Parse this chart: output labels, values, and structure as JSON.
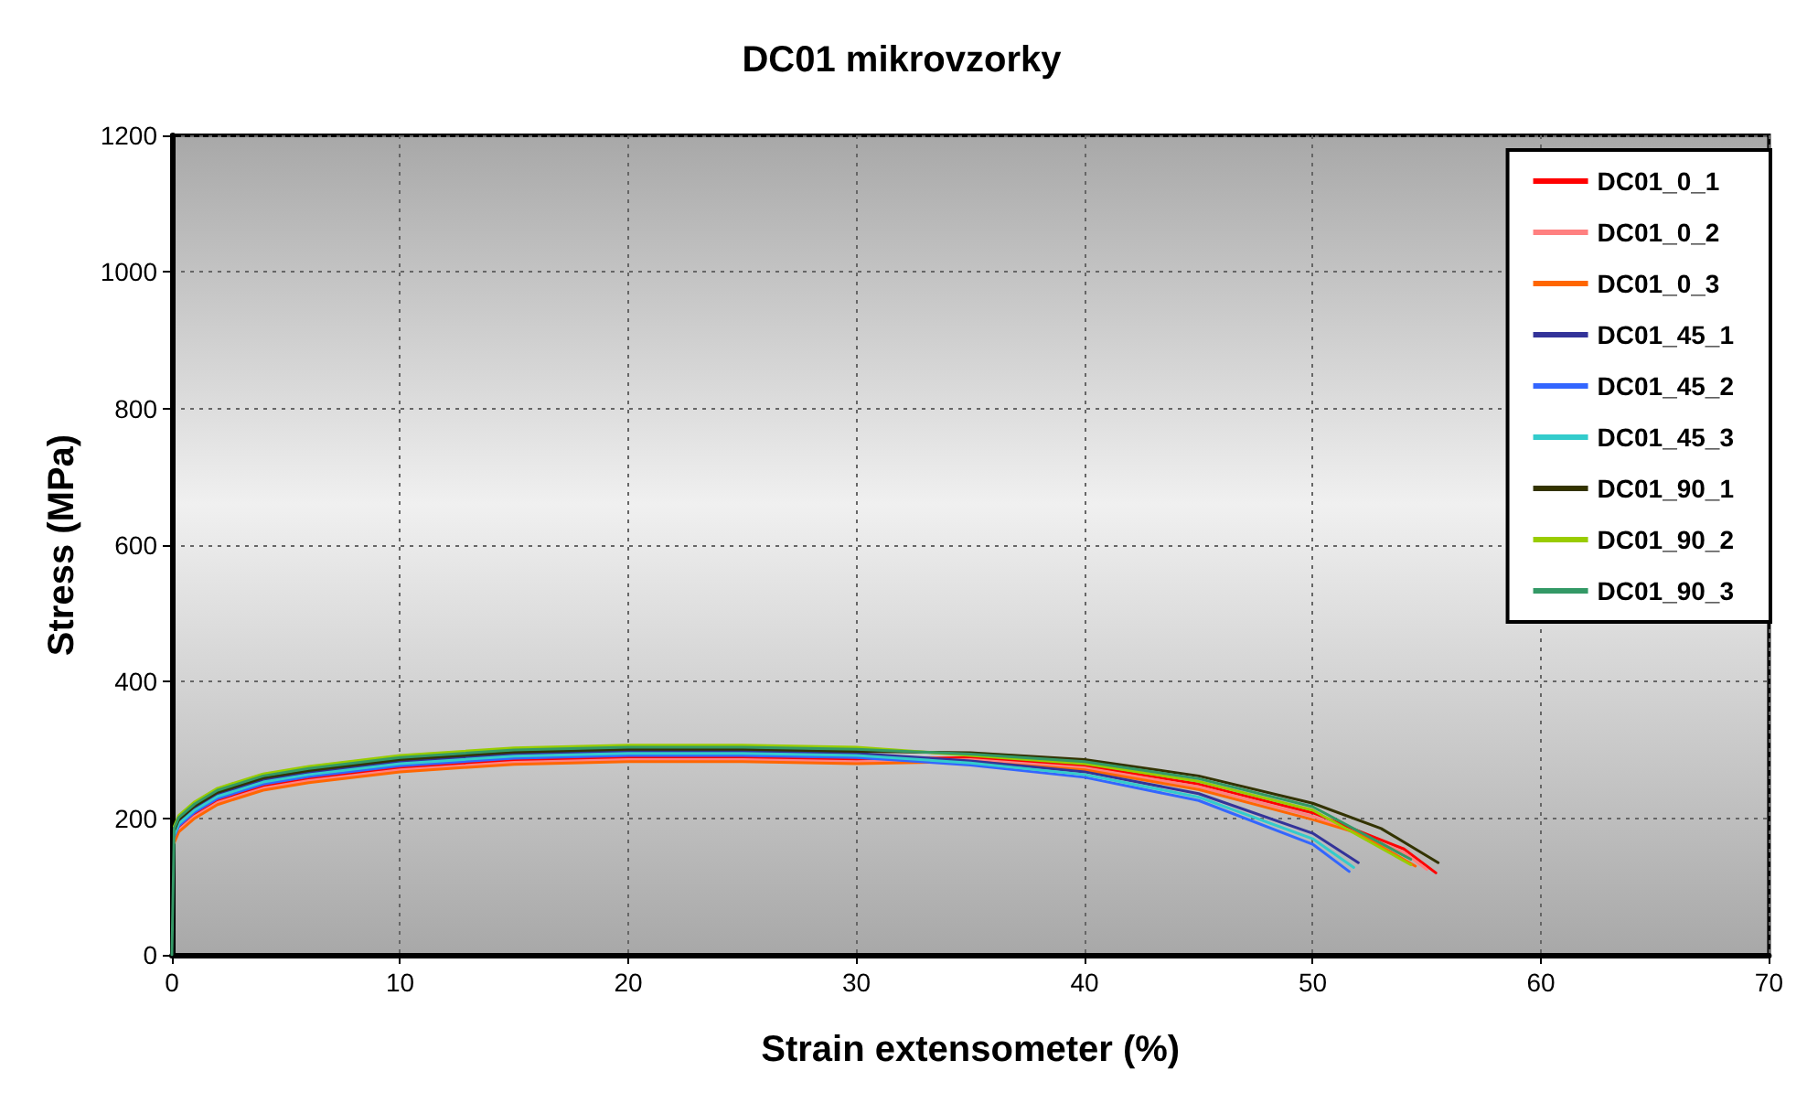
{
  "chart_data": {
    "type": "line",
    "title": "DC01 mikrovzorky",
    "xlabel": "Strain extensometer (%)",
    "ylabel": "Stress (MPa)",
    "xlim": [
      0,
      70
    ],
    "ylim": [
      0,
      1200
    ],
    "xticks": [
      0,
      10,
      20,
      30,
      40,
      50,
      60,
      70
    ],
    "yticks": [
      0,
      200,
      400,
      600,
      800,
      1000,
      1200
    ],
    "grid": true,
    "legend": "top right",
    "marker": "none",
    "line_style": "solid",
    "series": [
      {
        "name": "DC01_0_1",
        "color": "#ff0000",
        "x": [
          0.1,
          0.3,
          1,
          2,
          4,
          6,
          10,
          15,
          20,
          25,
          30,
          35,
          40,
          45,
          50,
          54,
          55.4
        ],
        "values": [
          170,
          186,
          206,
          226,
          247,
          258,
          274,
          285,
          289,
          289,
          286,
          289,
          277,
          250,
          208,
          155,
          120
        ]
      },
      {
        "name": "DC01_0_2",
        "color": "#ff8080",
        "x": [
          0.1,
          0.3,
          1,
          2,
          4,
          6,
          10,
          15,
          20,
          25,
          30,
          35,
          40,
          45,
          50,
          54,
          55
        ],
        "values": [
          167,
          183,
          203,
          223,
          244,
          255,
          271,
          282,
          286,
          286,
          283,
          286,
          274,
          246,
          203,
          150,
          125
        ]
      },
      {
        "name": "DC01_0_3",
        "color": "#ff6600",
        "x": [
          0.1,
          0.3,
          1,
          2,
          4,
          6,
          10,
          15,
          20,
          25,
          30,
          35,
          40,
          45,
          50,
          52,
          54.5
        ],
        "values": [
          164,
          180,
          200,
          220,
          241,
          252,
          268,
          279,
          283,
          283,
          280,
          283,
          271,
          242,
          198,
          178,
          130
        ]
      },
      {
        "name": "DC01_45_1",
        "color": "#333399",
        "x": [
          0.1,
          0.3,
          1,
          2,
          4,
          6,
          10,
          15,
          20,
          25,
          30,
          35,
          40,
          45,
          50,
          52
        ],
        "values": [
          179,
          195,
          215,
          235,
          256,
          267,
          283,
          294,
          298,
          298,
          295,
          284,
          268,
          236,
          178,
          135
        ]
      },
      {
        "name": "DC01_45_2",
        "color": "#3366ff",
        "x": [
          0.1,
          0.3,
          1,
          2,
          4,
          6,
          10,
          15,
          20,
          25,
          30,
          35,
          40,
          45,
          50,
          51.6
        ],
        "values": [
          173,
          189,
          209,
          229,
          250,
          261,
          277,
          288,
          292,
          292,
          289,
          278,
          260,
          226,
          162,
          122
        ]
      },
      {
        "name": "DC01_45_3",
        "color": "#33cccc",
        "x": [
          0.1,
          0.3,
          1,
          2,
          4,
          6,
          10,
          15,
          20,
          25,
          30,
          35,
          40,
          45,
          50,
          51.8
        ],
        "values": [
          176,
          192,
          212,
          232,
          253,
          264,
          280,
          291,
          295,
          295,
          292,
          281,
          264,
          231,
          170,
          128
        ]
      },
      {
        "name": "DC01_90_1",
        "color": "#333300",
        "x": [
          0.1,
          0.3,
          1,
          2,
          4,
          6,
          10,
          15,
          20,
          25,
          30,
          35,
          40,
          45,
          50,
          53,
          55.5
        ],
        "values": [
          182,
          198,
          218,
          238,
          259,
          270,
          286,
          297,
          301,
          301,
          298,
          296,
          286,
          262,
          222,
          185,
          135
        ]
      },
      {
        "name": "DC01_90_2",
        "color": "#99cc00",
        "x": [
          0.1,
          0.3,
          1,
          2,
          4,
          6,
          10,
          15,
          20,
          25,
          30,
          35,
          40,
          45,
          50,
          54.3
        ],
        "values": [
          188,
          204,
          224,
          244,
          265,
          276,
          292,
          303,
          307,
          307,
          304,
          292,
          280,
          254,
          212,
          132
        ]
      },
      {
        "name": "DC01_90_3",
        "color": "#339966",
        "x": [
          0,
          0.1,
          0.3,
          1,
          2,
          4,
          6,
          10,
          15,
          20,
          25,
          30,
          35,
          40,
          45,
          50,
          54.3
        ],
        "values": [
          0,
          185,
          201,
          221,
          241,
          262,
          273,
          289,
          300,
          304,
          304,
          301,
          294,
          283,
          258,
          217,
          140
        ]
      }
    ]
  }
}
